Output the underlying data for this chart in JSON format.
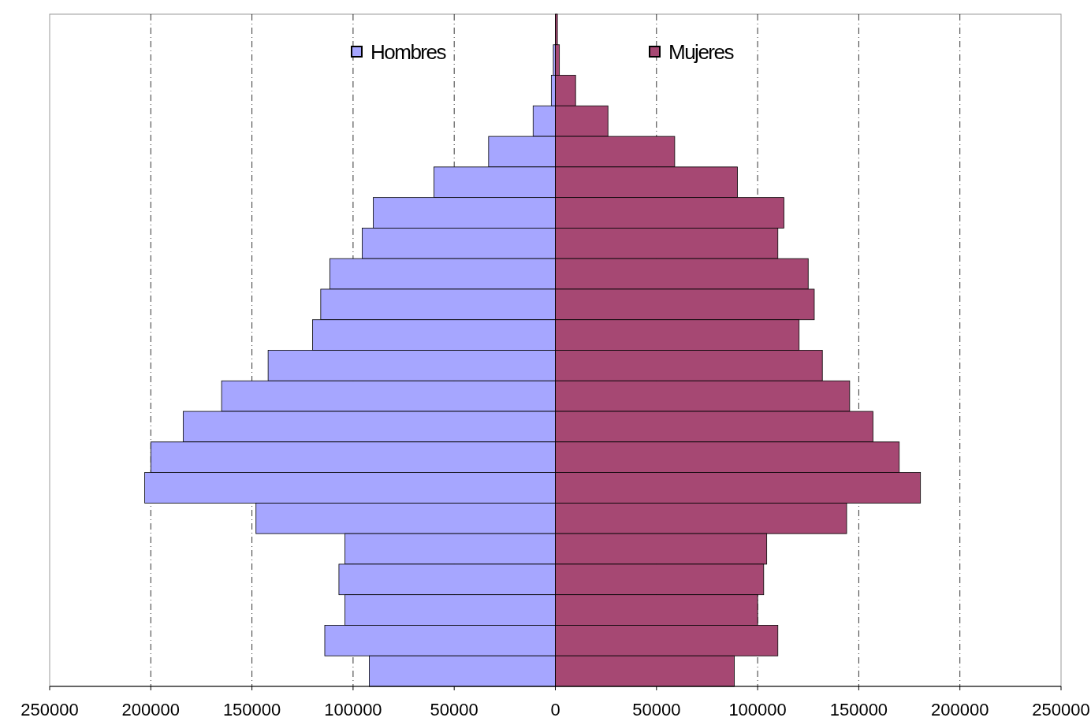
{
  "chart_data": {
    "type": "bar",
    "orientation": "horizontal",
    "stacked": true,
    "categories": [
      null,
      null,
      null,
      null,
      null,
      null,
      null,
      null,
      null,
      null,
      null,
      null,
      null,
      null,
      null,
      null,
      null,
      null,
      null,
      null,
      null,
      null
    ],
    "series": [
      {
        "name": "Hombres",
        "color": "#a6a6ff",
        "values": [
          0,
          -1000,
          -2000,
          -11000,
          -33000,
          -60000,
          -90000,
          -95500,
          -111500,
          -116000,
          -120000,
          -142000,
          -165000,
          -184000,
          -200000,
          -203000,
          -148000,
          -104000,
          -107000,
          -104000,
          -114000,
          -92000
        ]
      },
      {
        "name": "Mujeres",
        "color": "#a64873",
        "values": [
          1000,
          2000,
          10000,
          26000,
          59000,
          90000,
          113000,
          110000,
          125000,
          128000,
          120500,
          132000,
          145500,
          157000,
          170000,
          180500,
          144000,
          104500,
          103000,
          100000,
          110000,
          88500
        ]
      }
    ],
    "xlim": [
      -250000,
      250000
    ],
    "xticks": [
      {
        "value": -250000,
        "label": "250000"
      },
      {
        "value": -200000,
        "label": "200000"
      },
      {
        "value": -150000,
        "label": "150000"
      },
      {
        "value": -100000,
        "label": "100000"
      },
      {
        "value": -50000,
        "label": "50000"
      },
      0,
      50000,
      100000,
      150000,
      200000,
      250000
    ],
    "grid": "x",
    "legend": "top"
  }
}
